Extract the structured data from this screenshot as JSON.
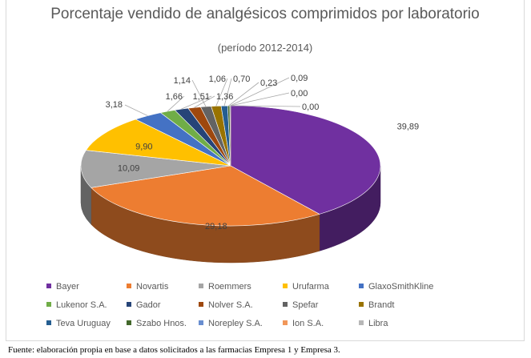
{
  "chart_data": {
    "type": "pie",
    "title": "Porcentaje vendido de analgésicos comprimidos por laboratorio",
    "subtitle": "(período 2012-2014)",
    "categories": [
      "Bayer",
      "Novartis",
      "Roemmers",
      "Urufarma",
      "GlaxoSmithKline",
      "Lukenor S.A.",
      "Gador",
      "Nolver S.A.",
      "Spefar",
      "Brandt",
      "Teva Uruguay",
      "Szabo Hnos.",
      "Norepley S.A.",
      "Ion S.A.",
      "Libra"
    ],
    "values": [
      39.89,
      29.18,
      10.09,
      9.9,
      3.18,
      1.66,
      1.51,
      1.36,
      1.14,
      1.06,
      0.7,
      0.23,
      0.09,
      0.0,
      0.0
    ],
    "value_labels": [
      "39,89",
      "29,18",
      "10,09",
      "9,90",
      "3,18",
      "1,66",
      "1,51",
      "1,36",
      "1,14",
      "1,06",
      "0,70",
      "0,23",
      "0,09",
      "0,00",
      "0,00"
    ],
    "colors": [
      "#7030a0",
      "#ed7d31",
      "#a5a5a5",
      "#ffc000",
      "#4472c4",
      "#70ad47",
      "#264478",
      "#9e480e",
      "#636363",
      "#997300",
      "#255e91",
      "#43682b",
      "#698ed0",
      "#f1975a",
      "#b7b7b7"
    ],
    "legend_position": "bottom",
    "style": "3d-pie"
  },
  "footer": {
    "source": "Fuente: elaboración propia en base a datos solicitados a las farmacias Empresa 1 y Empresa 3."
  }
}
